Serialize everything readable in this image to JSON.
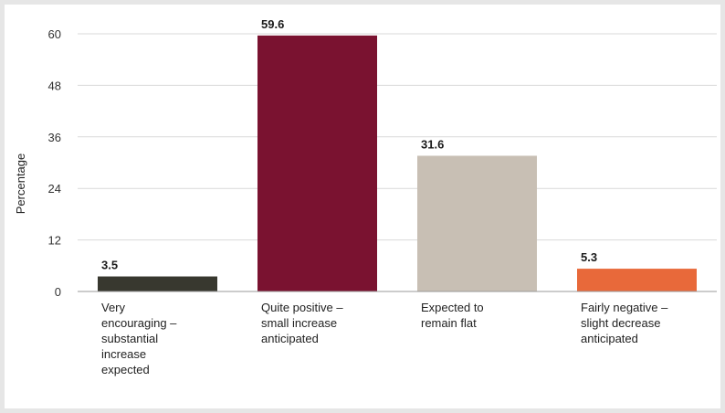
{
  "chart_data": {
    "type": "bar",
    "ylabel": "Percentage",
    "ylim": [
      0,
      60
    ],
    "yticks": [
      0,
      12,
      24,
      36,
      48,
      60
    ],
    "grid": true,
    "categories": [
      [
        "Very",
        "encouraging –",
        "substantial",
        "increase",
        "expected"
      ],
      [
        "Quite positive –",
        "small increase",
        "anticipated"
      ],
      [
        "Expected to",
        "remain flat"
      ],
      [
        "Fairly negative –",
        "slight decrease",
        "anticipated"
      ]
    ],
    "values": [
      3.5,
      59.6,
      31.6,
      5.3
    ],
    "data_labels": [
      "3.5",
      "59.6",
      "31.6",
      "5.3"
    ],
    "colors": [
      "#38382f",
      "#7a1230",
      "#c8bfb4",
      "#e8693a"
    ]
  }
}
